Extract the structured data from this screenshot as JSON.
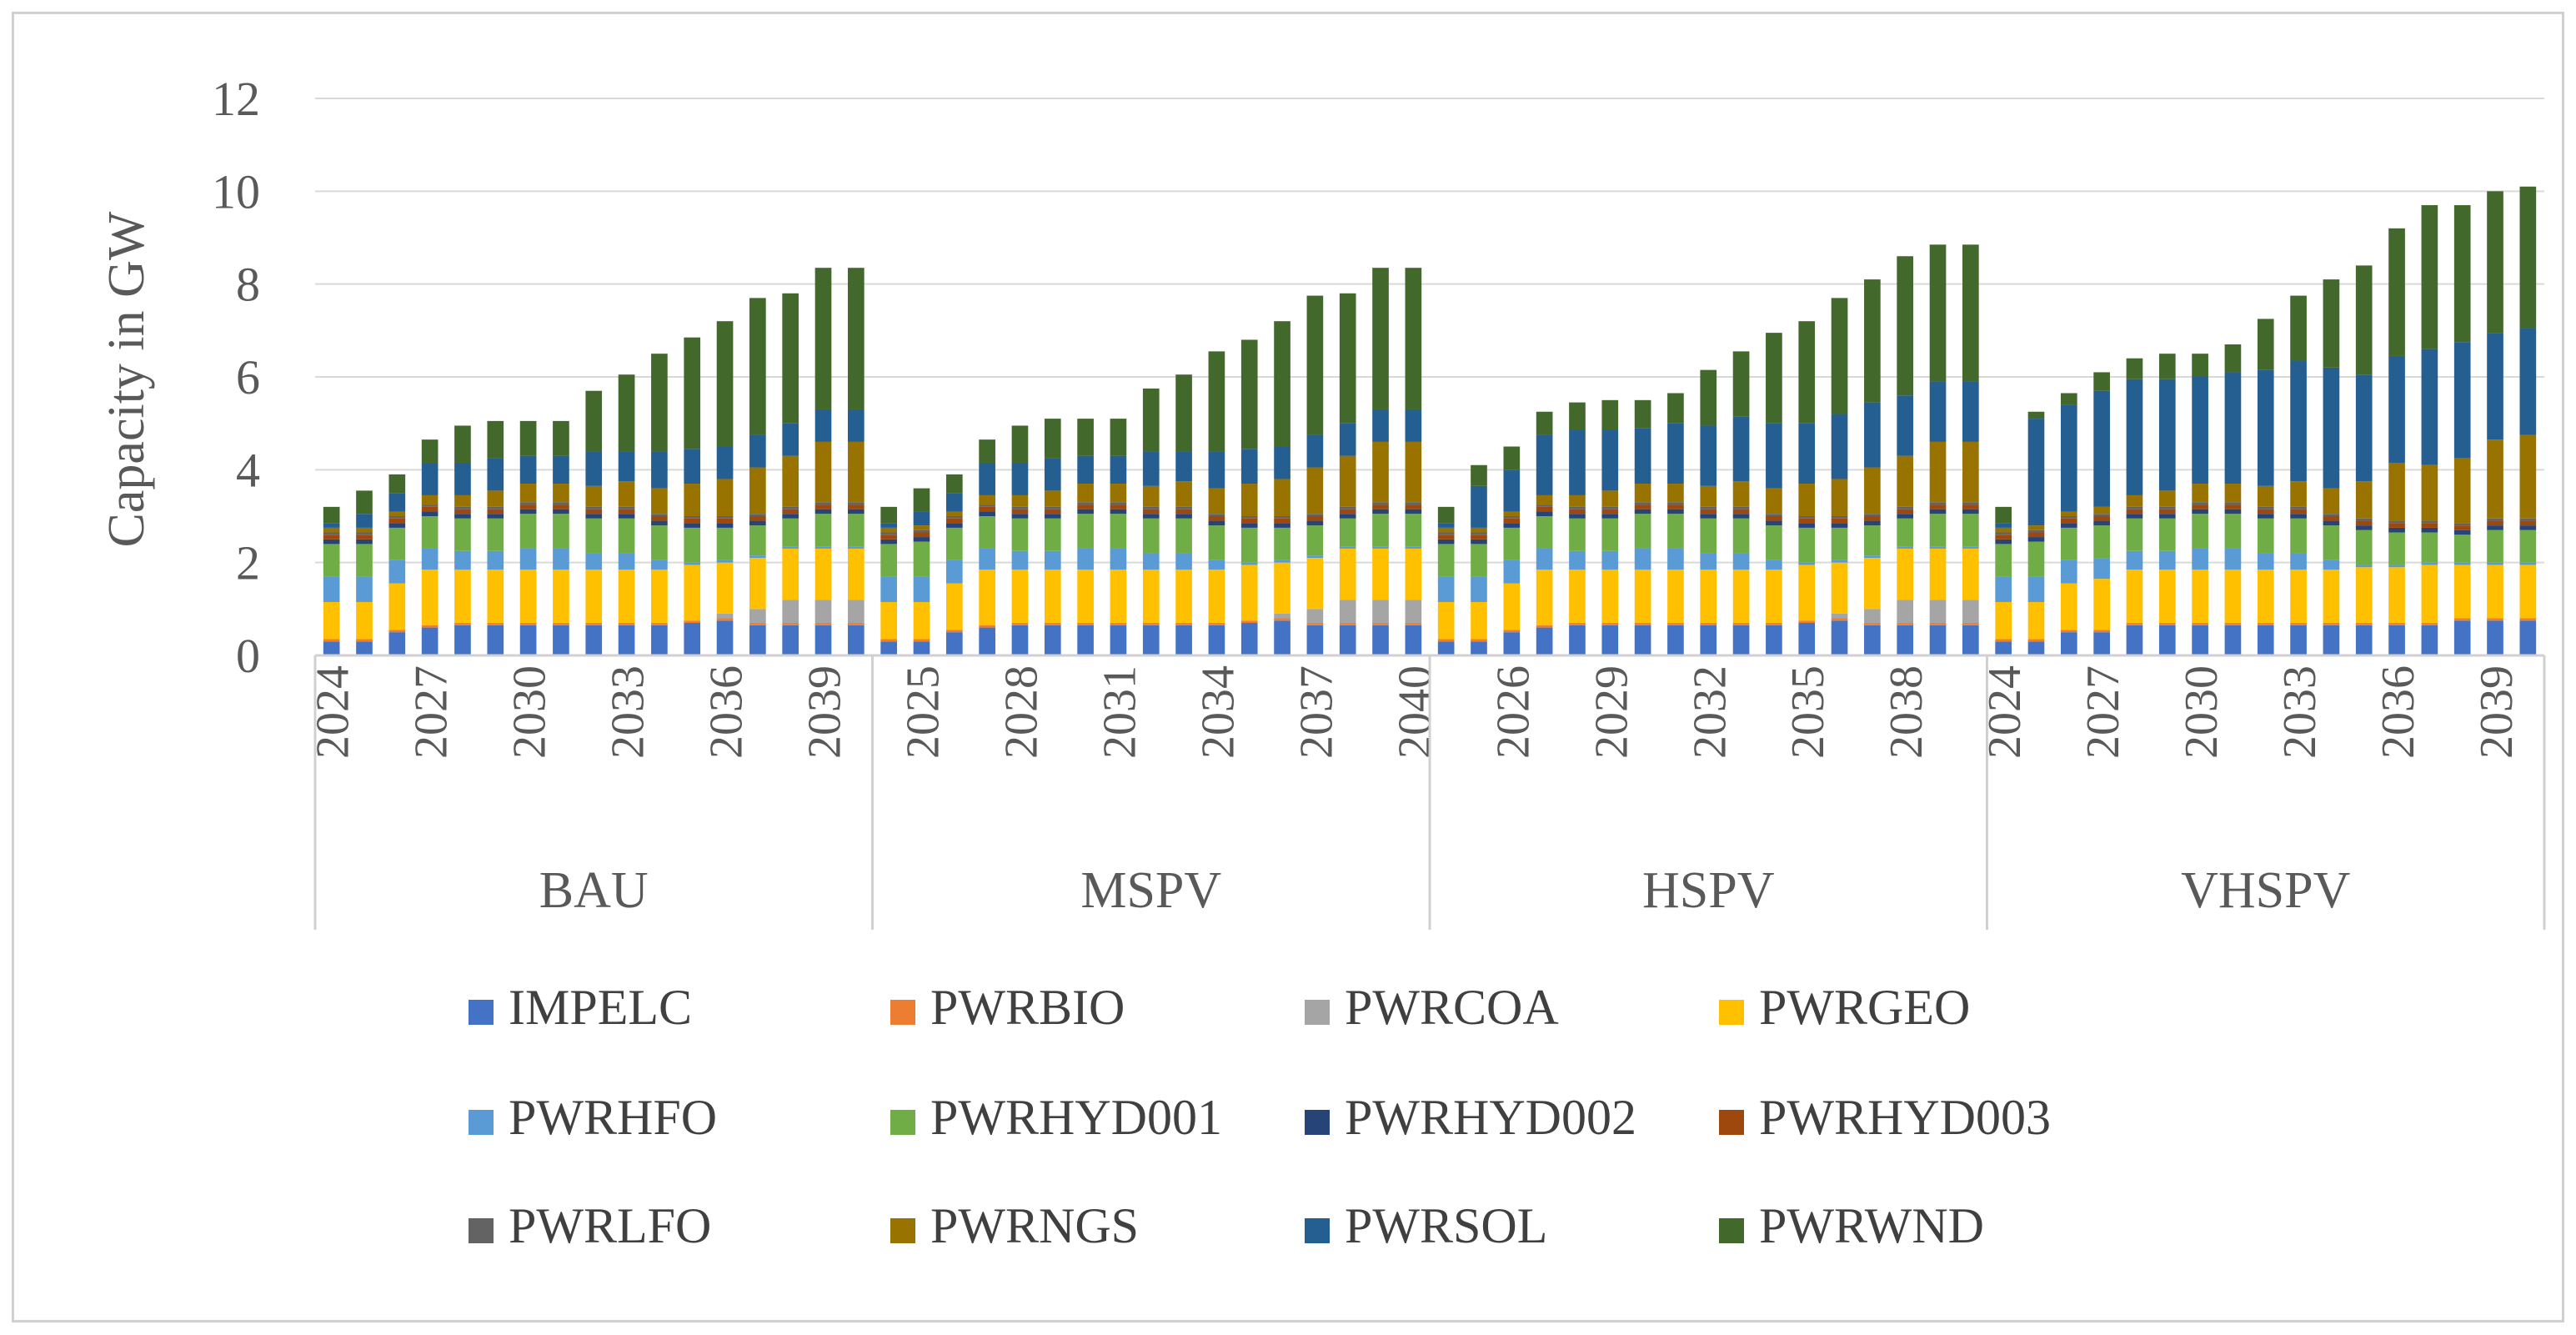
{
  "chart_data": {
    "type": "bar",
    "stacked": true,
    "title": "",
    "xlabel": "",
    "ylabel": "Capacity in GW",
    "ylim": [
      0,
      12
    ],
    "yticks": [
      0,
      2,
      4,
      6,
      8,
      10,
      12
    ],
    "grid": true,
    "legend_position": "bottom",
    "groups": [
      {
        "name": "BAU",
        "startYear": 2024,
        "tickLabels": [
          "2024",
          "2027",
          "2030",
          "2033",
          "2036",
          "2039"
        ]
      },
      {
        "name": "MSPV",
        "startYear": 2024,
        "tickLabels": [
          "2025",
          "2028",
          "2031",
          "2034",
          "2037",
          "2040"
        ]
      },
      {
        "name": "HSPV",
        "startYear": 2024,
        "tickLabels": [
          "2026",
          "2029",
          "2032",
          "2035",
          "2038"
        ]
      },
      {
        "name": "VHSPV",
        "startYear": 2024,
        "tickLabels": [
          "2024",
          "2027",
          "2030",
          "2033",
          "2036",
          "2039"
        ]
      }
    ],
    "series": [
      {
        "name": "IMPELC",
        "color": "#4472C4"
      },
      {
        "name": "PWRBIO",
        "color": "#ED7D31"
      },
      {
        "name": "PWRCOA",
        "color": "#A5A5A5"
      },
      {
        "name": "PWRGEO",
        "color": "#FFC000"
      },
      {
        "name": "PWRHFO",
        "color": "#5B9BD5"
      },
      {
        "name": "PWRHYD001",
        "color": "#70AD47"
      },
      {
        "name": "PWRHYD002",
        "color": "#264478"
      },
      {
        "name": "PWRHYD003",
        "color": "#9E480E"
      },
      {
        "name": "PWRLFO",
        "color": "#636363"
      },
      {
        "name": "PWRNGS",
        "color": "#997300"
      },
      {
        "name": "PWRSOL",
        "color": "#255E91"
      },
      {
        "name": "PWRWND",
        "color": "#43682B"
      }
    ],
    "bars": {
      "BAU": [
        [
          0.3,
          0.05,
          0,
          0.8,
          0.55,
          0.7,
          0.1,
          0.1,
          0.05,
          0.1,
          0.1,
          0.35
        ],
        [
          0.3,
          0.05,
          0,
          0.8,
          0.55,
          0.7,
          0.1,
          0.1,
          0.05,
          0.1,
          0.3,
          0.5
        ],
        [
          0.5,
          0.05,
          0,
          1.0,
          0.5,
          0.7,
          0.1,
          0.1,
          0.05,
          0.1,
          0.4,
          0.4
        ],
        [
          0.6,
          0.05,
          0,
          1.2,
          0.45,
          0.7,
          0.1,
          0.1,
          0.05,
          0.2,
          0.7,
          0.5
        ],
        [
          0.65,
          0.05,
          0,
          1.15,
          0.4,
          0.7,
          0.1,
          0.1,
          0.05,
          0.25,
          0.7,
          0.8
        ],
        [
          0.65,
          0.05,
          0,
          1.15,
          0.4,
          0.7,
          0.1,
          0.1,
          0.05,
          0.35,
          0.7,
          0.8
        ],
        [
          0.65,
          0.05,
          0,
          1.15,
          0.45,
          0.75,
          0.1,
          0.1,
          0.05,
          0.4,
          0.6,
          0.75
        ],
        [
          0.65,
          0.05,
          0,
          1.15,
          0.45,
          0.75,
          0.1,
          0.1,
          0.05,
          0.4,
          0.6,
          0.75
        ],
        [
          0.65,
          0.05,
          0,
          1.15,
          0.35,
          0.75,
          0.1,
          0.1,
          0.05,
          0.45,
          0.75,
          1.3
        ],
        [
          0.65,
          0.05,
          0,
          1.15,
          0.35,
          0.75,
          0.1,
          0.1,
          0.05,
          0.55,
          0.65,
          1.65
        ],
        [
          0.65,
          0.05,
          0,
          1.15,
          0.2,
          0.75,
          0.1,
          0.1,
          0.05,
          0.55,
          0.8,
          2.1
        ],
        [
          0.7,
          0.05,
          0,
          1.2,
          0.05,
          0.75,
          0.1,
          0.1,
          0.05,
          0.7,
          0.75,
          2.4
        ],
        [
          0.75,
          0.05,
          0.1,
          1.1,
          0.05,
          0.7,
          0.1,
          0.1,
          0.05,
          0.8,
          0.7,
          2.7
        ],
        [
          0.65,
          0.05,
          0.3,
          1.1,
          0.05,
          0.65,
          0.1,
          0.1,
          0.05,
          1.0,
          0.7,
          2.95
        ],
        [
          0.65,
          0.05,
          0.5,
          1.1,
          0.05,
          0.6,
          0.1,
          0.1,
          0.05,
          1.1,
          0.7,
          2.8
        ],
        [
          0.65,
          0.05,
          0.5,
          1.1,
          0.05,
          0.7,
          0.1,
          0.1,
          0.05,
          1.3,
          0.7,
          3.05
        ],
        [
          0.65,
          0.05,
          0.5,
          1.1,
          0.05,
          0.7,
          0.1,
          0.1,
          0.05,
          1.3,
          0.7,
          3.05
        ]
      ],
      "MSPV": [
        [
          0.3,
          0.05,
          0,
          0.8,
          0.55,
          0.7,
          0.1,
          0.1,
          0.05,
          0.1,
          0.1,
          0.35
        ],
        [
          0.3,
          0.05,
          0,
          0.8,
          0.55,
          0.75,
          0.1,
          0.1,
          0.05,
          0.1,
          0.3,
          0.5
        ],
        [
          0.5,
          0.05,
          0,
          1.0,
          0.5,
          0.7,
          0.1,
          0.1,
          0.05,
          0.1,
          0.4,
          0.4
        ],
        [
          0.6,
          0.05,
          0,
          1.2,
          0.45,
          0.7,
          0.1,
          0.1,
          0.05,
          0.2,
          0.7,
          0.5
        ],
        [
          0.65,
          0.05,
          0,
          1.15,
          0.4,
          0.7,
          0.1,
          0.1,
          0.05,
          0.25,
          0.7,
          0.8
        ],
        [
          0.65,
          0.05,
          0,
          1.15,
          0.4,
          0.7,
          0.1,
          0.1,
          0.05,
          0.35,
          0.7,
          0.85
        ],
        [
          0.65,
          0.05,
          0,
          1.15,
          0.45,
          0.75,
          0.1,
          0.1,
          0.05,
          0.4,
          0.6,
          0.8
        ],
        [
          0.65,
          0.05,
          0,
          1.15,
          0.45,
          0.75,
          0.1,
          0.1,
          0.05,
          0.4,
          0.6,
          0.8
        ],
        [
          0.65,
          0.05,
          0,
          1.15,
          0.35,
          0.75,
          0.1,
          0.1,
          0.05,
          0.45,
          0.75,
          1.35
        ],
        [
          0.65,
          0.05,
          0,
          1.15,
          0.35,
          0.75,
          0.1,
          0.1,
          0.05,
          0.55,
          0.65,
          1.65
        ],
        [
          0.65,
          0.05,
          0,
          1.15,
          0.2,
          0.75,
          0.1,
          0.1,
          0.05,
          0.55,
          0.8,
          2.15
        ],
        [
          0.7,
          0.05,
          0,
          1.2,
          0.05,
          0.75,
          0.1,
          0.1,
          0.05,
          0.7,
          0.75,
          2.35
        ],
        [
          0.75,
          0.05,
          0.1,
          1.1,
          0.05,
          0.7,
          0.1,
          0.1,
          0.05,
          0.8,
          0.7,
          2.7
        ],
        [
          0.65,
          0.05,
          0.3,
          1.1,
          0.05,
          0.65,
          0.1,
          0.1,
          0.05,
          1.0,
          0.7,
          3.0
        ],
        [
          0.65,
          0.05,
          0.5,
          1.1,
          0.05,
          0.6,
          0.1,
          0.1,
          0.05,
          1.1,
          0.7,
          2.8
        ],
        [
          0.65,
          0.05,
          0.5,
          1.1,
          0.05,
          0.7,
          0.1,
          0.1,
          0.05,
          1.3,
          0.7,
          3.05
        ],
        [
          0.65,
          0.05,
          0.5,
          1.1,
          0.05,
          0.7,
          0.1,
          0.1,
          0.05,
          1.3,
          0.7,
          3.05
        ]
      ],
      "HSPV": [
        [
          0.3,
          0.05,
          0,
          0.8,
          0.55,
          0.7,
          0.1,
          0.1,
          0.05,
          0.1,
          0.1,
          0.35
        ],
        [
          0.3,
          0.05,
          0,
          0.8,
          0.55,
          0.7,
          0.1,
          0.1,
          0.05,
          0.1,
          0.9,
          0.45
        ],
        [
          0.5,
          0.05,
          0,
          1.0,
          0.5,
          0.7,
          0.1,
          0.1,
          0.05,
          0.1,
          0.9,
          0.5
        ],
        [
          0.6,
          0.05,
          0,
          1.2,
          0.45,
          0.7,
          0.1,
          0.1,
          0.05,
          0.2,
          1.3,
          0.5
        ],
        [
          0.65,
          0.05,
          0,
          1.15,
          0.4,
          0.7,
          0.1,
          0.1,
          0.05,
          0.25,
          1.4,
          0.6
        ],
        [
          0.65,
          0.05,
          0,
          1.15,
          0.4,
          0.7,
          0.1,
          0.1,
          0.05,
          0.35,
          1.3,
          0.65
        ],
        [
          0.65,
          0.05,
          0,
          1.15,
          0.45,
          0.75,
          0.1,
          0.1,
          0.05,
          0.4,
          1.2,
          0.6
        ],
        [
          0.65,
          0.05,
          0,
          1.15,
          0.45,
          0.75,
          0.1,
          0.1,
          0.05,
          0.4,
          1.3,
          0.65
        ],
        [
          0.65,
          0.05,
          0,
          1.15,
          0.35,
          0.75,
          0.1,
          0.1,
          0.05,
          0.45,
          1.3,
          1.2
        ],
        [
          0.65,
          0.05,
          0,
          1.15,
          0.35,
          0.75,
          0.1,
          0.1,
          0.05,
          0.55,
          1.4,
          1.4
        ],
        [
          0.65,
          0.05,
          0,
          1.15,
          0.2,
          0.75,
          0.1,
          0.1,
          0.05,
          0.55,
          1.4,
          1.95
        ],
        [
          0.7,
          0.05,
          0,
          1.2,
          0.05,
          0.75,
          0.1,
          0.1,
          0.05,
          0.7,
          1.3,
          2.2
        ],
        [
          0.75,
          0.05,
          0.1,
          1.1,
          0.05,
          0.7,
          0.1,
          0.1,
          0.05,
          0.8,
          1.4,
          2.5
        ],
        [
          0.65,
          0.05,
          0.3,
          1.1,
          0.05,
          0.65,
          0.1,
          0.1,
          0.05,
          1.0,
          1.4,
          2.65
        ],
        [
          0.65,
          0.05,
          0.5,
          1.1,
          0.05,
          0.6,
          0.1,
          0.1,
          0.05,
          1.1,
          1.3,
          3.0
        ],
        [
          0.65,
          0.05,
          0.5,
          1.1,
          0.05,
          0.7,
          0.1,
          0.1,
          0.05,
          1.3,
          1.3,
          2.95
        ],
        [
          0.65,
          0.05,
          0.5,
          1.1,
          0.05,
          0.7,
          0.1,
          0.1,
          0.05,
          1.3,
          1.3,
          2.95
        ]
      ],
      "VHSPV": [
        [
          0.3,
          0.05,
          0,
          0.8,
          0.55,
          0.7,
          0.1,
          0.1,
          0.05,
          0.1,
          0.1,
          0.35
        ],
        [
          0.3,
          0.05,
          0,
          0.8,
          0.55,
          0.75,
          0.1,
          0.1,
          0.05,
          0.1,
          2.3,
          0.15
        ],
        [
          0.5,
          0.05,
          0,
          1.0,
          0.5,
          0.7,
          0.1,
          0.1,
          0.05,
          0.1,
          2.3,
          0.25
        ],
        [
          0.5,
          0.05,
          0,
          1.1,
          0.45,
          0.7,
          0.1,
          0.1,
          0.05,
          0.15,
          2.5,
          0.4
        ],
        [
          0.65,
          0.05,
          0,
          1.15,
          0.4,
          0.7,
          0.1,
          0.1,
          0.05,
          0.25,
          2.5,
          0.45
        ],
        [
          0.65,
          0.05,
          0,
          1.15,
          0.4,
          0.7,
          0.1,
          0.1,
          0.05,
          0.35,
          2.4,
          0.55
        ],
        [
          0.65,
          0.05,
          0,
          1.15,
          0.45,
          0.75,
          0.1,
          0.1,
          0.05,
          0.4,
          2.3,
          0.5
        ],
        [
          0.65,
          0.05,
          0,
          1.15,
          0.45,
          0.75,
          0.1,
          0.1,
          0.05,
          0.4,
          2.4,
          0.6
        ],
        [
          0.65,
          0.05,
          0,
          1.15,
          0.35,
          0.75,
          0.1,
          0.1,
          0.05,
          0.45,
          2.5,
          1.1
        ],
        [
          0.65,
          0.05,
          0,
          1.15,
          0.35,
          0.75,
          0.1,
          0.1,
          0.05,
          0.55,
          2.6,
          1.4
        ],
        [
          0.65,
          0.05,
          0,
          1.15,
          0.2,
          0.75,
          0.1,
          0.1,
          0.05,
          0.55,
          2.6,
          1.9
        ],
        [
          0.65,
          0.05,
          0,
          1.2,
          0.05,
          0.75,
          0.1,
          0.1,
          0.05,
          0.8,
          2.3,
          2.35
        ],
        [
          0.65,
          0.05,
          0,
          1.2,
          0.05,
          0.7,
          0.1,
          0.1,
          0.05,
          1.25,
          2.3,
          2.75
        ],
        [
          0.65,
          0.05,
          0,
          1.25,
          0.05,
          0.65,
          0.1,
          0.1,
          0.05,
          1.2,
          2.5,
          3.1
        ],
        [
          0.75,
          0.05,
          0,
          1.15,
          0.05,
          0.6,
          0.1,
          0.1,
          0.05,
          1.4,
          2.5,
          2.95
        ],
        [
          0.75,
          0.05,
          0,
          1.15,
          0.05,
          0.7,
          0.1,
          0.1,
          0.05,
          1.7,
          2.3,
          3.05
        ],
        [
          0.75,
          0.05,
          0,
          1.15,
          0.05,
          0.7,
          0.1,
          0.1,
          0.05,
          1.8,
          2.3,
          3.05
        ]
      ]
    }
  }
}
